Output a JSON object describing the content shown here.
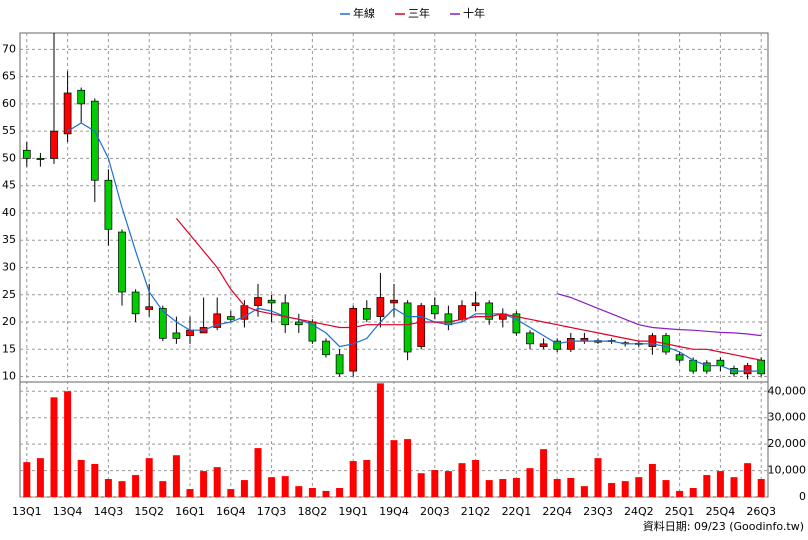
{
  "chart_data": {
    "type": "candlestick",
    "categories": [
      "13Q1",
      null,
      null,
      "13Q4",
      null,
      null,
      "14Q3",
      null,
      null,
      "15Q2",
      null,
      null,
      "16Q1",
      null,
      null,
      "16Q4",
      null,
      null,
      "17Q3",
      null,
      null,
      "18Q2",
      null,
      null,
      "19Q1",
      null,
      null,
      "19Q4",
      null,
      null,
      "20Q3",
      null,
      null,
      "21Q2",
      null,
      null,
      "22Q1",
      null,
      null,
      "22Q4",
      null,
      null,
      "23Q3",
      null,
      null,
      "24Q2",
      null,
      null,
      "25Q1",
      null,
      null,
      "25Q4",
      null,
      null,
      "26Q3"
    ],
    "open": [
      51.5,
      50,
      50,
      54.5,
      62.5,
      60.5,
      46,
      36.5,
      25.5,
      22.3,
      22.5,
      18,
      17.5,
      18,
      19,
      21,
      20.5,
      23,
      24,
      23.5,
      20,
      20,
      16.5,
      14,
      11,
      22.5,
      21,
      23.5,
      23.5,
      15.5,
      23,
      21.5,
      20.5,
      23,
      23.5,
      20.5,
      21.5,
      18,
      15.5,
      16.5,
      15,
      16.5,
      16.3,
      16.6,
      16.2,
      16.1,
      15.5,
      17.5,
      14,
      13,
      12.5,
      13,
      11.5,
      10.5,
      13
    ],
    "high": [
      53,
      51,
      73,
      66,
      63,
      61,
      48,
      37,
      26,
      27,
      23,
      21,
      21,
      24.5,
      24.5,
      22,
      24,
      27,
      25,
      25,
      21.5,
      20.5,
      17,
      15,
      23,
      24,
      29,
      27,
      24,
      23.5,
      24.5,
      23,
      24,
      25.5,
      24,
      22.5,
      22,
      18.5,
      17,
      17,
      18,
      18,
      17,
      17,
      16.5,
      16.5,
      18,
      18,
      14.5,
      13.5,
      13,
      13.5,
      12,
      12.5,
      13.5
    ],
    "low": [
      48.5,
      48.5,
      49,
      53,
      56.5,
      42,
      34,
      23,
      20,
      21,
      16.5,
      16,
      16,
      18,
      18.5,
      20,
      19,
      21,
      20,
      18,
      18,
      16,
      13.5,
      10,
      10,
      20,
      19,
      21,
      13,
      15,
      20.5,
      18.5,
      20,
      22,
      19.5,
      19,
      17.5,
      15,
      15,
      14.5,
      14.5,
      16,
      16,
      16,
      15.5,
      15.5,
      14,
      14,
      12.5,
      10.5,
      10.5,
      11,
      10,
      9.5,
      10
    ],
    "close": [
      50,
      49.8,
      55,
      62,
      60,
      46,
      37,
      25.5,
      21.5,
      22.8,
      17,
      17,
      18.5,
      19,
      21.5,
      20.5,
      23,
      24.5,
      23.5,
      19.5,
      19.5,
      16.5,
      14,
      10.5,
      22.5,
      20.5,
      24.5,
      24,
      14.5,
      23,
      21.5,
      19.5,
      23,
      23.5,
      20.5,
      21.5,
      18,
      16,
      16,
      15,
      17,
      17,
      16.6,
      16.4,
      16,
      15.9,
      17.5,
      14.5,
      13,
      11,
      11,
      12,
      10.5,
      12,
      10.5
    ],
    "up_color": "#ff0000",
    "down_color": "#00cc00",
    "ylim": [
      9,
      73
    ],
    "yticks": [
      10,
      15,
      20,
      25,
      30,
      35,
      40,
      45,
      50,
      55,
      60,
      65,
      70
    ],
    "grid": true,
    "series": [
      {
        "name": "年線",
        "color": "#1f6fd1",
        "values": [
          null,
          null,
          null,
          55,
          56.5,
          55,
          50,
          41,
          33,
          25.5,
          22,
          20,
          18.5,
          18.5,
          19.5,
          20,
          21,
          22.5,
          22,
          21,
          20.5,
          19.5,
          18,
          15.5,
          16,
          17,
          20,
          22.5,
          21,
          21,
          20,
          19.5,
          20,
          21.5,
          21.5,
          21.5,
          20.5,
          19,
          17.5,
          16,
          16.5,
          16.5,
          16.5,
          16.5,
          16,
          16,
          16,
          15.5,
          14.5,
          13,
          12,
          12,
          11,
          11,
          11
        ]
      },
      {
        "name": "三年",
        "color": "#e0002a",
        "values": [
          null,
          null,
          null,
          null,
          null,
          null,
          null,
          null,
          null,
          null,
          null,
          39,
          36,
          33,
          30,
          26,
          23,
          22,
          21.5,
          21,
          20.5,
          20,
          19.5,
          19,
          19,
          19.5,
          19.5,
          19.5,
          19.5,
          20,
          20,
          20,
          20.5,
          21,
          21,
          21.5,
          21,
          20.5,
          20,
          19.5,
          19,
          18.5,
          18,
          17.5,
          17,
          16.5,
          16.5,
          16,
          15.5,
          15,
          15,
          14.5,
          14,
          13.5,
          13
        ]
      },
      {
        "name": "十年",
        "color": "#8a1fc7",
        "values": [
          null,
          null,
          null,
          null,
          null,
          null,
          null,
          null,
          null,
          null,
          null,
          null,
          null,
          null,
          null,
          null,
          null,
          null,
          null,
          null,
          null,
          null,
          null,
          null,
          null,
          null,
          null,
          null,
          null,
          null,
          null,
          null,
          null,
          null,
          null,
          null,
          null,
          null,
          null,
          25.2,
          24.5,
          23.5,
          22.5,
          21.5,
          20.5,
          19.5,
          19,
          18.8,
          18.6,
          18.5,
          18.3,
          18.1,
          18,
          17.8,
          17.5
        ]
      }
    ],
    "volume": {
      "color": "#ff0000",
      "values": [
        13200,
        14700,
        37700,
        40000,
        14000,
        12500,
        6800,
        6000,
        8300,
        14700,
        6000,
        15800,
        3000,
        9800,
        11300,
        3000,
        6400,
        18500,
        7500,
        7900,
        4100,
        3400,
        2300,
        3400,
        13600,
        14000,
        43000,
        21500,
        21900,
        9000,
        10200,
        9800,
        12800,
        14000,
        6400,
        6800,
        7200,
        10900,
        18100,
        6800,
        7200,
        4100,
        14700,
        5300,
        6000,
        7500,
        12500,
        6400,
        2300,
        3400,
        8300,
        9800,
        7500,
        12800,
        6800
      ],
      "ylim": [
        0,
        43500
      ],
      "yticks": [
        0,
        {
          "value": 10000,
          "label": "10,000"
        },
        {
          "value": 20000,
          "label": "20,000"
        },
        {
          "value": 30000,
          "label": "30,000"
        },
        {
          "value": 40000,
          "label": "40,000"
        }
      ]
    },
    "footer": "資料日期: 09/23  (Goodinfo.tw)"
  }
}
